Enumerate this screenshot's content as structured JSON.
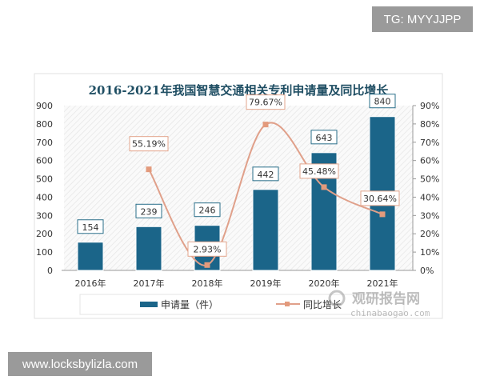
{
  "watermarks": {
    "top_right": "TG: MYYJJPP",
    "bottom_left": "www.locksbylizla.com"
  },
  "logo": {
    "name": "观研报告网",
    "url": "chinabaogao.com"
  },
  "chart_data": {
    "type": "bar+line",
    "title": "2016-2021年我国智慧交通相关专利申请量及同比增长",
    "categories": [
      "2016年",
      "2017年",
      "2018年",
      "2019年",
      "2020年",
      "2021年"
    ],
    "series": [
      {
        "name": "申请量（件）",
        "type": "bar",
        "axis": "left",
        "color": "#1b6589",
        "values": [
          154,
          239,
          246,
          442,
          643,
          840
        ],
        "labels": [
          "154",
          "239",
          "246",
          "442",
          "643",
          "840"
        ]
      },
      {
        "name": "同比增长",
        "type": "line",
        "axis": "right",
        "color": "#e0a08a",
        "marker_color": "#e39a7c",
        "values": [
          null,
          55.19,
          2.93,
          79.67,
          45.48,
          30.64
        ],
        "labels": [
          "",
          "55.19%",
          "2.93%",
          "79.67%",
          "45.48%",
          "30.64%"
        ]
      }
    ],
    "left_axis": {
      "ylim": [
        0,
        900
      ],
      "ticks": [
        "0",
        "100",
        "200",
        "300",
        "400",
        "500",
        "600",
        "700",
        "800",
        "900"
      ]
    },
    "right_axis": {
      "ylim": [
        0,
        90
      ],
      "ticks": [
        "0%",
        "10%",
        "20%",
        "30%",
        "40%",
        "50%",
        "60%",
        "70%",
        "80%",
        "90%"
      ]
    },
    "legend": "bottom",
    "grid": false
  }
}
